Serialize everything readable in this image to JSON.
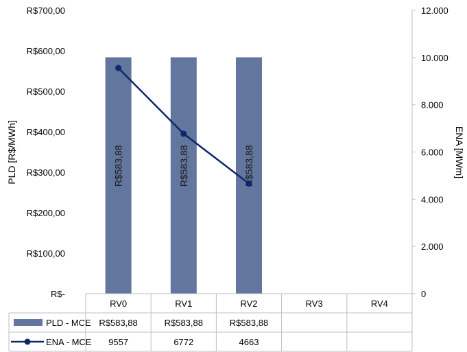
{
  "chart_data": {
    "type": "bar",
    "categories": [
      "RV0",
      "RV1",
      "RV2",
      "RV3",
      "RV4"
    ],
    "series": [
      {
        "name": "PLD - MCE",
        "kind": "bar",
        "axis": "left",
        "color": "#62769e",
        "values": [
          583.88,
          583.88,
          583.88,
          null,
          null
        ],
        "labels": [
          "R$583,88",
          "R$583,88",
          "R$583,88",
          "",
          ""
        ]
      },
      {
        "name": "ENA - MCE",
        "kind": "line",
        "axis": "right",
        "color": "#0e2866",
        "values": [
          9557,
          6772,
          4663,
          null,
          null
        ],
        "labels": [
          "9557",
          "6772",
          "4663",
          "",
          ""
        ]
      }
    ],
    "ylabel_left": "PLD [R$/MWh]",
    "ylabel_right": "ENA [MWm]",
    "ylim_left": [
      0,
      700
    ],
    "ylim_right": [
      0,
      12000
    ],
    "yticks_left": [
      "R$-",
      "R$100,00",
      "R$200,00",
      "R$300,00",
      "R$400,00",
      "R$500,00",
      "R$600,00",
      "R$700,00"
    ],
    "yticks_right": [
      "0",
      "2.000",
      "4.000",
      "6.000",
      "8.000",
      "10.000",
      "12.000"
    ],
    "grid": false,
    "legend": "data table below chart"
  }
}
